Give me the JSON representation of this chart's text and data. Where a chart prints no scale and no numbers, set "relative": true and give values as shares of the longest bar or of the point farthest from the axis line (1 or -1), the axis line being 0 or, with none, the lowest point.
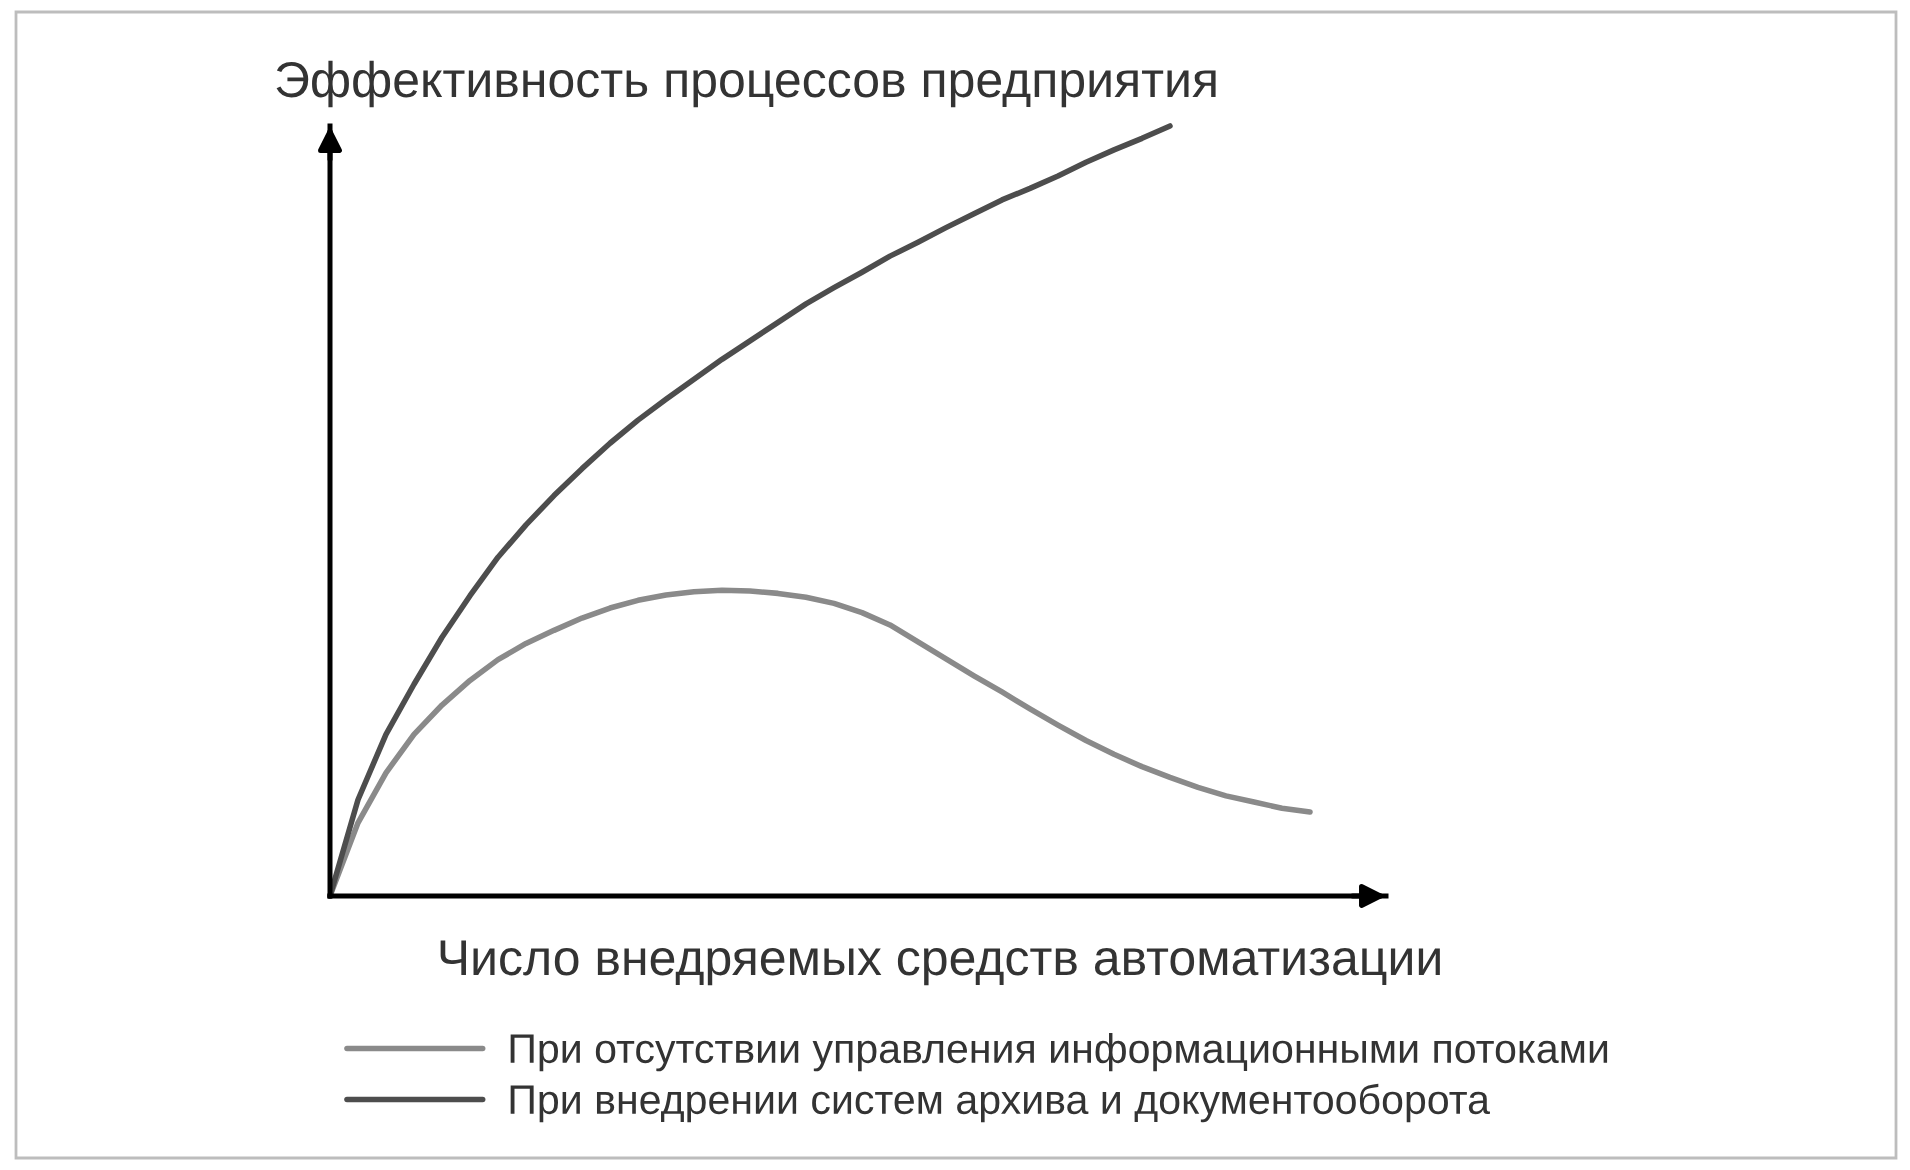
{
  "chart_data": {
    "type": "line",
    "relative": true,
    "ylabel": "Эффективность процессов предприятия",
    "xlabel": "Число внедряемых средств автоматизации",
    "legend": "bottom",
    "categories": [
      null,
      null,
      null,
      null,
      null,
      null,
      null,
      null,
      null,
      null,
      null,
      null,
      null,
      null,
      null,
      null,
      null,
      null,
      null,
      null,
      null,
      null,
      null,
      null,
      null,
      null,
      null,
      null,
      null,
      null,
      null,
      null,
      null,
      null,
      null,
      null
    ],
    "series": [
      {
        "name": "При отсутствии управления информационными потоками",
        "color": "#8a8a8a",
        "values": [
          0,
          0.095,
          0.16,
          0.21,
          0.248,
          0.28,
          0.307,
          0.328,
          0.345,
          0.361,
          0.374,
          0.384,
          0.391,
          0.395,
          0.397,
          0.396,
          0.393,
          0.388,
          0.38,
          0.368,
          0.352,
          0.33,
          0.308,
          0.286,
          0.265,
          0.243,
          0.222,
          0.202,
          0.184,
          0.168,
          0.154,
          0.141,
          0.13,
          0.122,
          0.114,
          0.109
        ]
      },
      {
        "name": "При внедрении систем архива и документооборота",
        "color": "#4d4d4d",
        "values": [
          0,
          0.125,
          0.21,
          0.275,
          0.336,
          0.39,
          0.44,
          0.482,
          0.52,
          0.555,
          0.588,
          0.618,
          0.645,
          0.671,
          0.697,
          0.721,
          0.745,
          0.769,
          0.79,
          0.81,
          0.831,
          0.849,
          0.868,
          0.886,
          0.904,
          0.919,
          0.935,
          0.953,
          0.969,
          0.984,
          1.0,
          null,
          null,
          null,
          null,
          null
        ]
      }
    ]
  }
}
